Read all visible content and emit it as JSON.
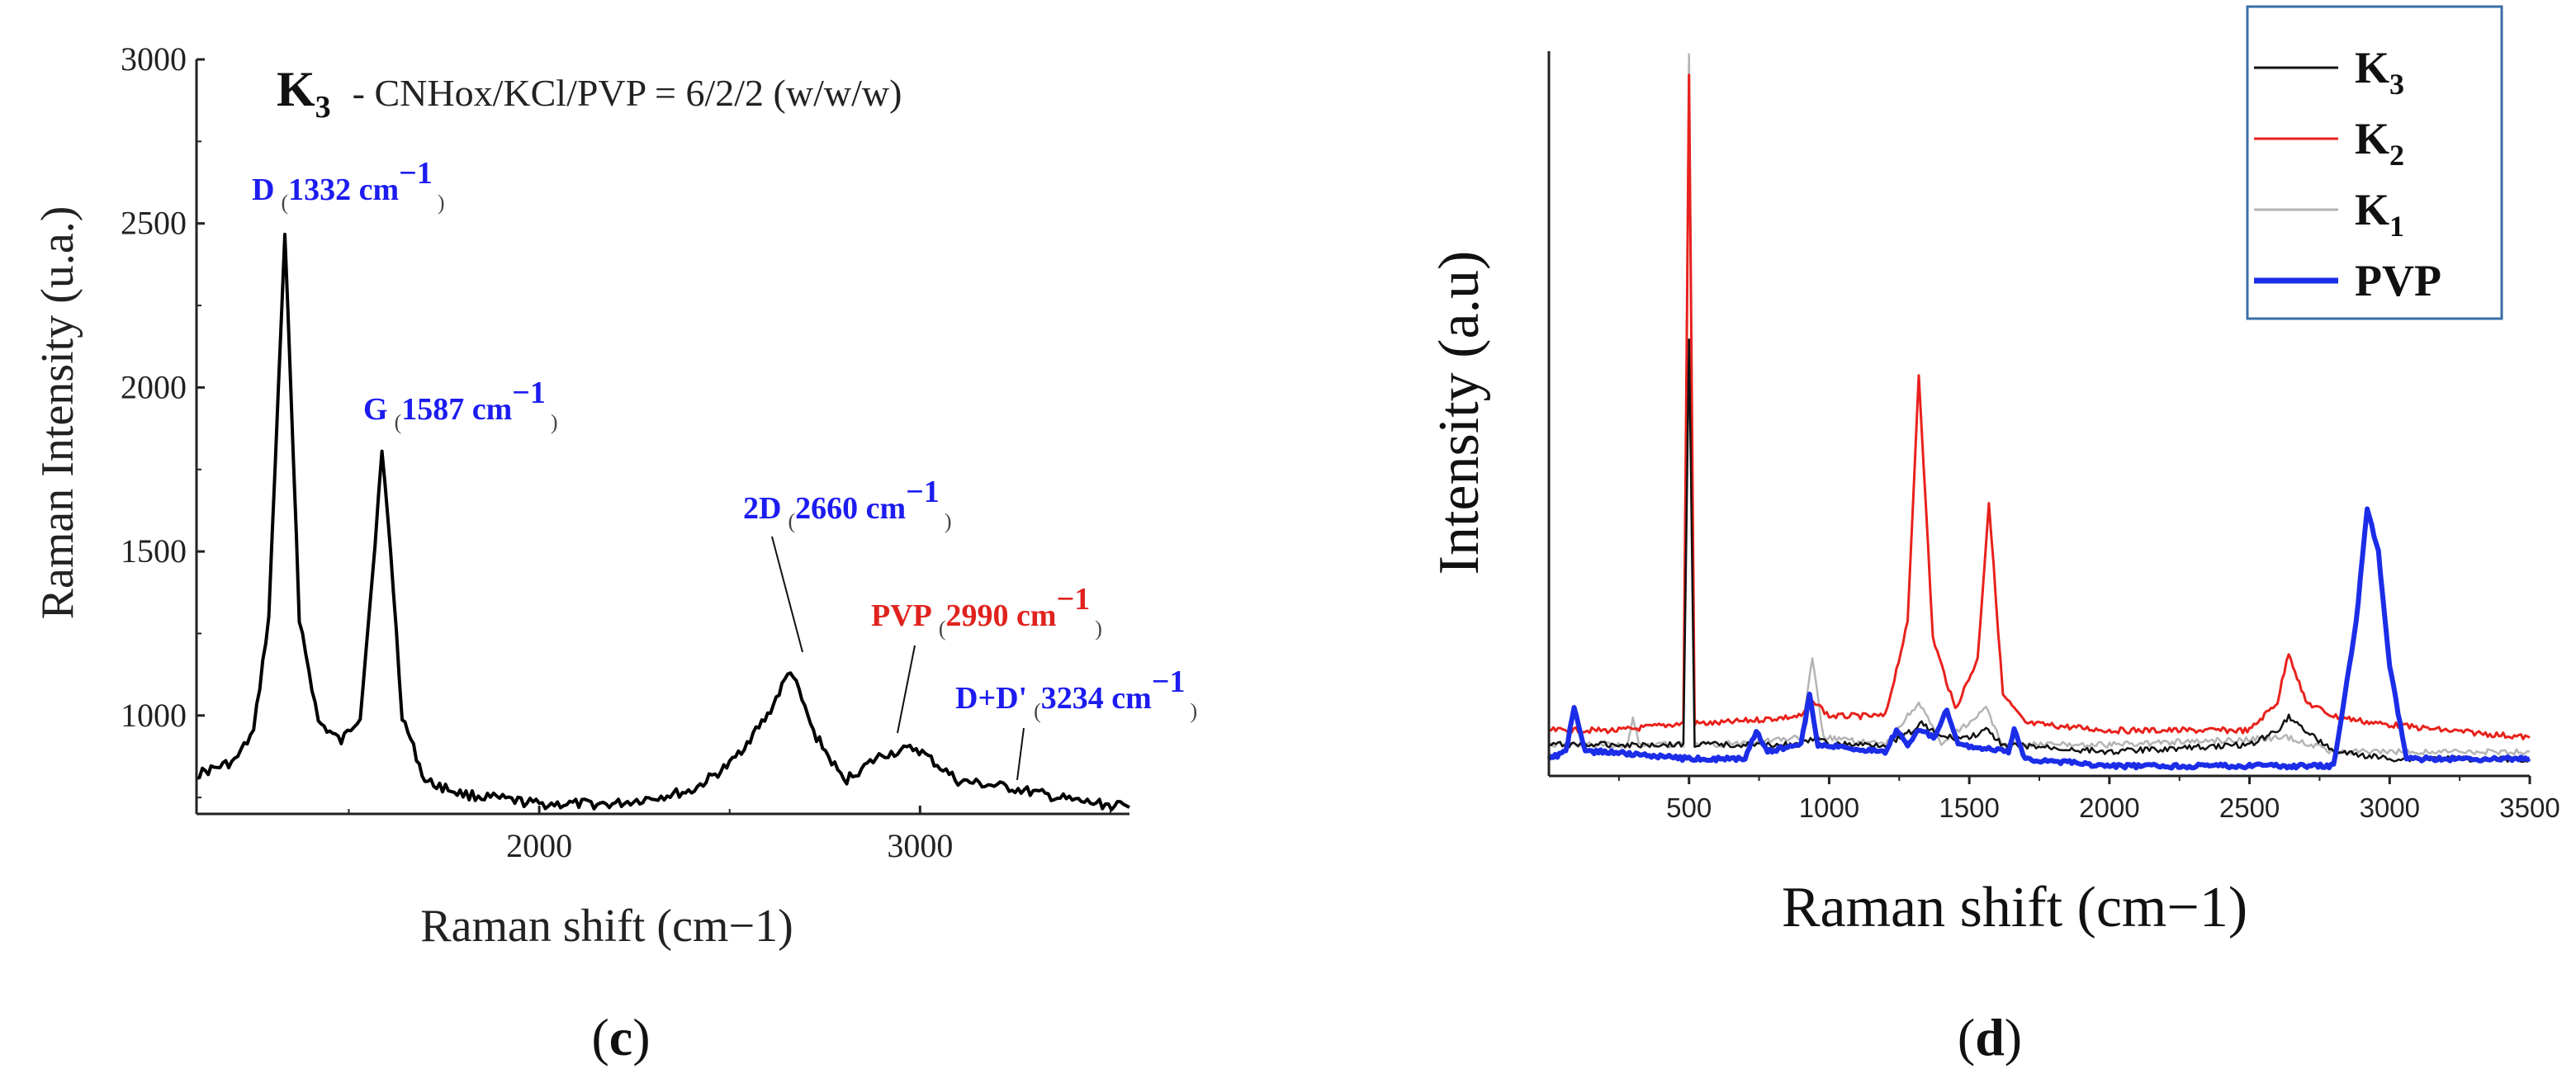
{
  "panel_c": {
    "label_open": "(",
    "label_letter": "c",
    "label_close": ")",
    "title_symbol": "K",
    "title_subscript": "3",
    "title_text": "- CNHox/KCl/PVP = 6/2/2 (w/w/w)",
    "annotations": [
      {
        "name": "D",
        "value": "1332 cm",
        "sup": "−1",
        "color": "#1c1cf0"
      },
      {
        "name": "G",
        "value": "1587 cm",
        "sup": "−1",
        "color": "#1c1cf0"
      },
      {
        "name": "2D",
        "value": "2660 cm",
        "sup": "−1",
        "color": "#1c1cf0"
      },
      {
        "name": "PVP",
        "value": "2990 cm",
        "sup": "−1",
        "color": "#e0231e"
      },
      {
        "name": "D+D'",
        "value": "3234 cm",
        "sup": "−1",
        "color": "#1c1cf0"
      }
    ]
  },
  "panel_d": {
    "label_open": "(",
    "label_letter": "d",
    "label_close": ")"
  },
  "chart_data": [
    {
      "type": "line",
      "title": "K3 - CNHox/KCl/PVP = 6/2/2 (w/w/w)",
      "xlabel": "Raman shift (cm−1)",
      "ylabel": "Raman Intensity (u.a.)",
      "xlim": [
        1100,
        3550
      ],
      "ylim": [
        700,
        3000
      ],
      "xticks": [
        2000,
        3000
      ],
      "xtick_labels": [
        "2000",
        "3000"
      ],
      "yticks": [
        1000,
        1500,
        2000,
        2500,
        3000
      ],
      "ytick_labels": [
        "1000",
        "1500",
        "2000",
        "2500",
        "3000"
      ],
      "series": [
        {
          "name": "K3",
          "color": "#000000",
          "x": [
            1100,
            1200,
            1250,
            1290,
            1332,
            1370,
            1420,
            1480,
            1530,
            1560,
            1587,
            1610,
            1640,
            1700,
            1800,
            2000,
            2200,
            2400,
            2500,
            2600,
            2660,
            2720,
            2800,
            2900,
            2990,
            3100,
            3234,
            3400,
            3550
          ],
          "y": [
            820,
            860,
            950,
            1300,
            2470,
            1300,
            980,
            920,
            1000,
            1400,
            1800,
            1500,
            1000,
            800,
            760,
            730,
            730,
            770,
            850,
            1000,
            1140,
            950,
            800,
            880,
            900,
            800,
            780,
            740,
            720
          ]
        }
      ],
      "annotations": [
        {
          "label": "D",
          "x": 1332,
          "text": "1332 cm−1"
        },
        {
          "label": "G",
          "x": 1587,
          "text": "1587 cm−1"
        },
        {
          "label": "2D",
          "x": 2660,
          "text": "2660 cm−1"
        },
        {
          "label": "PVP",
          "x": 2990,
          "text": "2990 cm−1"
        },
        {
          "label": "D+D'",
          "x": 3234,
          "text": "3234 cm−1"
        }
      ]
    },
    {
      "type": "line",
      "title": "",
      "xlabel": "Raman shift (cm−1)",
      "ylabel": "Intensity (a.u)",
      "xlim": [
        0,
        3500
      ],
      "ylim": [
        0,
        100
      ],
      "xticks": [
        500,
        1000,
        1500,
        2000,
        2500,
        3000,
        3500
      ],
      "xtick_labels": [
        "500",
        "1000",
        "1500",
        "2000",
        "2500",
        "3000",
        "3500"
      ],
      "legend": "top-right",
      "series": [
        {
          "name": "K3",
          "color": "#111111",
          "x": [
            0,
            480,
            500,
            520,
            600,
            900,
            950,
            1000,
            1200,
            1300,
            1330,
            1400,
            1500,
            1560,
            1620,
            2000,
            2500,
            2600,
            2640,
            2700,
            2800,
            3000,
            3200,
            3500
          ],
          "y": [
            3,
            3,
            60,
            3,
            3,
            3,
            4,
            3,
            3,
            5,
            6,
            4,
            4,
            5,
            3,
            2,
            3,
            5,
            7,
            5,
            2,
            1,
            1,
            1
          ]
        },
        {
          "name": "K2",
          "color": "#e8211c",
          "x": [
            0,
            250,
            480,
            500,
            520,
            600,
            900,
            950,
            1000,
            1200,
            1280,
            1320,
            1370,
            1450,
            1530,
            1570,
            1620,
            1700,
            2000,
            2500,
            2600,
            2640,
            2700,
            2800,
            2950,
            3200,
            3500
          ],
          "y": [
            5,
            5,
            6,
            97,
            6,
            6,
            7,
            9,
            7,
            7,
            20,
            55,
            18,
            8,
            15,
            37,
            10,
            6,
            5,
            5,
            9,
            16,
            9,
            7,
            6,
            5,
            4
          ]
        },
        {
          "name": "K1",
          "color": "#b4b4b4",
          "x": [
            0,
            280,
            300,
            320,
            480,
            500,
            520,
            600,
            900,
            940,
            980,
            1200,
            1320,
            1400,
            1560,
            1620,
            2000,
            2640,
            2800,
            3200,
            3500
          ],
          "y": [
            3,
            3,
            7,
            3,
            3,
            100,
            3,
            3,
            4,
            15,
            4,
            3,
            9,
            3,
            8,
            3,
            3,
            4,
            2,
            2,
            2
          ]
        },
        {
          "name": "PVP",
          "color": "#1c2de8",
          "x": [
            0,
            60,
            90,
            130,
            200,
            500,
            700,
            740,
            780,
            900,
            930,
            960,
            1200,
            1240,
            1280,
            1320,
            1380,
            1420,
            1460,
            1640,
            1660,
            1700,
            2000,
            2500,
            2800,
            2880,
            2920,
            2960,
            3000,
            3060,
            3200,
            3500
          ],
          "y": [
            1,
            2,
            8,
            2,
            2,
            1,
            1,
            5,
            2,
            3,
            10,
            3,
            2,
            5,
            3,
            5,
            4,
            8,
            3,
            2,
            5,
            1,
            0,
            0,
            0,
            20,
            36,
            30,
            14,
            1,
            1,
            1
          ]
        }
      ]
    }
  ]
}
